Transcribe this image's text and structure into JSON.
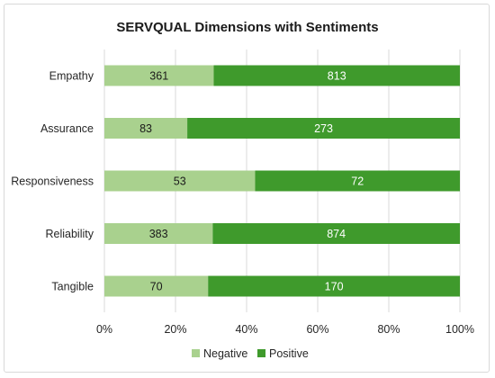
{
  "chart_data": {
    "type": "bar",
    "orientation": "horizontal",
    "stacked": "percent",
    "title": "SERVQUAL Dimensions with Sentiments",
    "xlabel": "",
    "ylabel": "",
    "categories": [
      "Empathy",
      "Assurance",
      "Responsiveness",
      "Reliability",
      "Tangible"
    ],
    "series": [
      {
        "name": "Negative",
        "color": "#a9d18e",
        "values": [
          361,
          83,
          53,
          383,
          70
        ]
      },
      {
        "name": "Positive",
        "color": "#3f9a2c",
        "values": [
          813,
          273,
          72,
          874,
          170
        ]
      }
    ],
    "xticks": [
      "0%",
      "20%",
      "40%",
      "60%",
      "80%",
      "100%"
    ],
    "xlim": [
      0,
      100
    ],
    "grid": true,
    "legend_position": "bottom",
    "label_colors": {
      "Negative": "#1a1a1a",
      "Positive": "#ffffff"
    }
  }
}
